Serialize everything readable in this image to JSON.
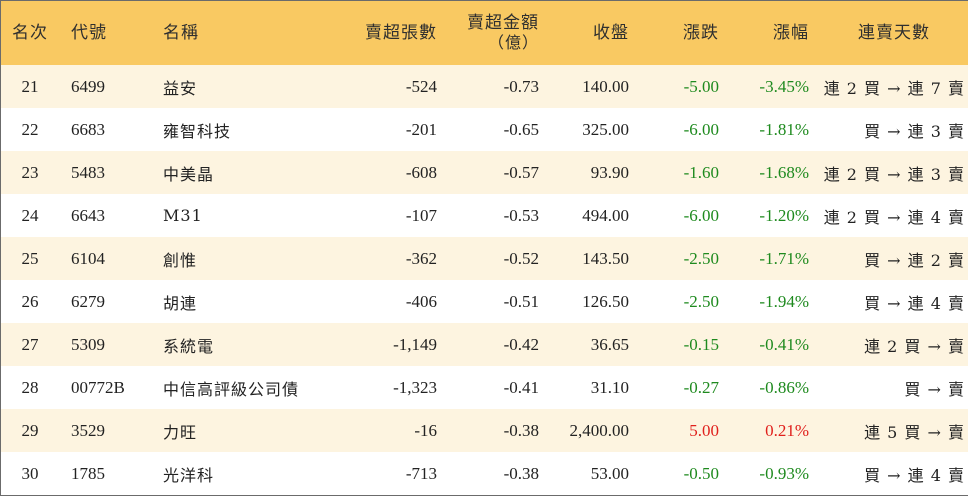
{
  "headers": {
    "rank": "名次",
    "code": "代號",
    "name": "名稱",
    "net_sell_volume": "賣超張數",
    "net_sell_amount": "賣超金額",
    "net_sell_amount_unit": "（億）",
    "close": "收盤",
    "change": "漲跌",
    "change_pct": "漲幅",
    "consecutive_days": "連賣天數"
  },
  "colors": {
    "header_bg": "#f9c962",
    "stripe_bg": "#fdf4e0",
    "down": "#1e8a1e",
    "up": "#e0201c"
  },
  "rows": [
    {
      "rank": "21",
      "code": "6499",
      "name": "益安",
      "volume": "-524",
      "amount": "-0.73",
      "close": "140.00",
      "change": "-5.00",
      "pct": "-3.45%",
      "days": "連 2 買 → 連 7 賣",
      "dir": "down"
    },
    {
      "rank": "22",
      "code": "6683",
      "name": "雍智科技",
      "volume": "-201",
      "amount": "-0.65",
      "close": "325.00",
      "change": "-6.00",
      "pct": "-1.81%",
      "days": "買 → 連 3 賣",
      "dir": "down"
    },
    {
      "rank": "23",
      "code": "5483",
      "name": "中美晶",
      "volume": "-608",
      "amount": "-0.57",
      "close": "93.90",
      "change": "-1.60",
      "pct": "-1.68%",
      "days": "連 2 買 → 連 3 賣",
      "dir": "down"
    },
    {
      "rank": "24",
      "code": "6643",
      "name": "M31",
      "volume": "-107",
      "amount": "-0.53",
      "close": "494.00",
      "change": "-6.00",
      "pct": "-1.20%",
      "days": "連 2 買 → 連 4 賣",
      "dir": "down"
    },
    {
      "rank": "25",
      "code": "6104",
      "name": "創惟",
      "volume": "-362",
      "amount": "-0.52",
      "close": "143.50",
      "change": "-2.50",
      "pct": "-1.71%",
      "days": "買 → 連 2 賣",
      "dir": "down"
    },
    {
      "rank": "26",
      "code": "6279",
      "name": "胡連",
      "volume": "-406",
      "amount": "-0.51",
      "close": "126.50",
      "change": "-2.50",
      "pct": "-1.94%",
      "days": "買 → 連 4 賣",
      "dir": "down"
    },
    {
      "rank": "27",
      "code": "5309",
      "name": "系統電",
      "volume": "-1,149",
      "amount": "-0.42",
      "close": "36.65",
      "change": "-0.15",
      "pct": "-0.41%",
      "days": "連 2 買 → 賣",
      "dir": "down"
    },
    {
      "rank": "28",
      "code": "00772B",
      "name": "中信高評級公司債",
      "volume": "-1,323",
      "amount": "-0.41",
      "close": "31.10",
      "change": "-0.27",
      "pct": "-0.86%",
      "days": "買 → 賣",
      "dir": "down"
    },
    {
      "rank": "29",
      "code": "3529",
      "name": "力旺",
      "volume": "-16",
      "amount": "-0.38",
      "close": "2,400.00",
      "change": "5.00",
      "pct": "0.21%",
      "days": "連 5 買 → 賣",
      "dir": "up"
    },
    {
      "rank": "30",
      "code": "1785",
      "name": "光洋科",
      "volume": "-713",
      "amount": "-0.38",
      "close": "53.00",
      "change": "-0.50",
      "pct": "-0.93%",
      "days": "買 → 連 4 賣",
      "dir": "down"
    }
  ]
}
